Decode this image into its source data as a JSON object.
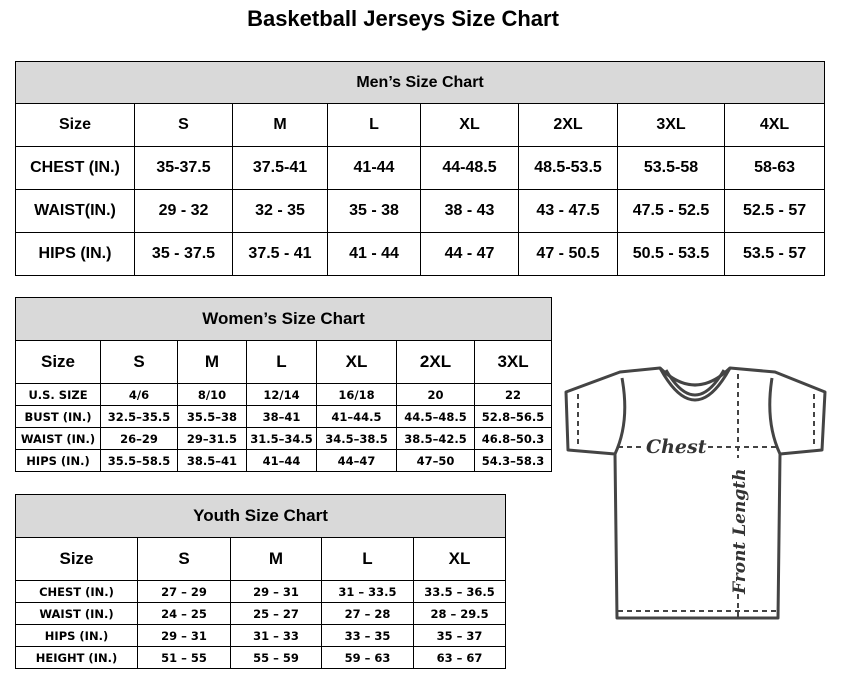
{
  "title": "Basketball Jerseys Size Chart",
  "men": {
    "heading": "Men’s Size Chart",
    "header": [
      "Size",
      "S",
      "M",
      "L",
      "XL",
      "2XL",
      "3XL",
      "4XL"
    ],
    "rows": [
      [
        "CHEST (IN.)",
        "35-37.5",
        "37.5-41",
        "41-44",
        "44-48.5",
        "48.5-53.5",
        "53.5-58",
        "58-63"
      ],
      [
        "WAIST(IN.)",
        "29 - 32",
        "32 - 35",
        "35 - 38",
        "38 - 43",
        "43 - 47.5",
        "47.5 - 52.5",
        "52.5 - 57"
      ],
      [
        "HIPS (IN.)",
        "35 - 37.5",
        "37.5 - 41",
        "41 - 44",
        "44 - 47",
        "47 - 50.5",
        "50.5 - 53.5",
        "53.5 - 57"
      ]
    ]
  },
  "women": {
    "heading": "Women’s Size Chart",
    "header": [
      "Size",
      "S",
      "M",
      "L",
      "XL",
      "2XL",
      "3XL"
    ],
    "rows": [
      [
        "U.S. SIZE",
        "4/6",
        "8/10",
        "12/14",
        "16/18",
        "20",
        "22"
      ],
      [
        "BUST (IN.)",
        "32.5–35.5",
        "35.5–38",
        "38–41",
        "41–44.5",
        "44.5–48.5",
        "52.8–56.5"
      ],
      [
        "WAIST (IN.)",
        "26–29",
        "29–31.5",
        "31.5–34.5",
        "34.5–38.5",
        "38.5–42.5",
        "46.8–50.3"
      ],
      [
        "HIPS (IN.)",
        "35.5–58.5",
        "38.5–41",
        "41–44",
        "44–47",
        "47–50",
        "54.3–58.3"
      ]
    ]
  },
  "youth": {
    "heading": "Youth Size Chart",
    "header": [
      "Size",
      "S",
      "M",
      "L",
      "XL"
    ],
    "rows": [
      [
        "CHEST (IN.)",
        "27 – 29",
        "29 – 31",
        "31 – 33.5",
        "33.5 – 36.5"
      ],
      [
        "WAIST (IN.)",
        "24 – 25",
        "25 – 27",
        "27 – 28",
        "28 – 29.5"
      ],
      [
        "HIPS (IN.)",
        "29 – 31",
        "31 – 33",
        "33 – 35",
        "35 – 37"
      ],
      [
        "HEIGHT (IN.)",
        "51 – 55",
        "55 – 59",
        "59 – 63",
        "63 – 67"
      ]
    ]
  },
  "diagram": {
    "chest_label": "Chest",
    "length_label": "Front Length"
  }
}
